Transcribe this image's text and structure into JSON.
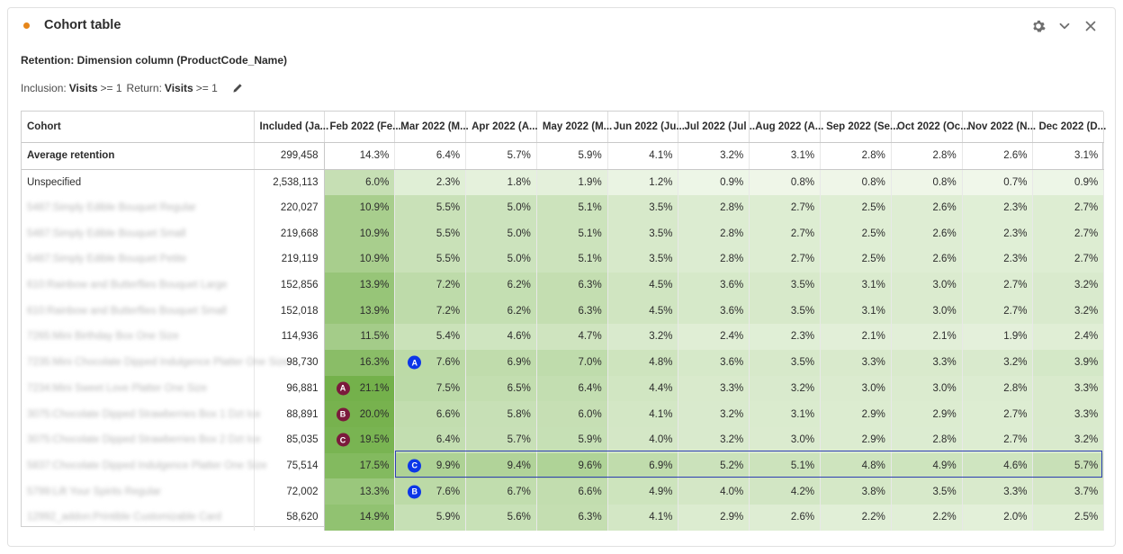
{
  "panel": {
    "title": "Cohort table",
    "status_color": "#e68619",
    "icons": [
      "gear-icon",
      "chevron-down-icon",
      "close-icon"
    ]
  },
  "subtitle": "Retention: Dimension column (ProductCode_Name)",
  "criteria": {
    "inclusion_label": "Inclusion:",
    "inclusion_metric": "Visits",
    "inclusion_op": ">= 1",
    "return_label": "Return:",
    "return_metric": "Visits",
    "return_op": ">= 1"
  },
  "table": {
    "columns": [
      "Cohort",
      "Included (Ja...",
      "Feb 2022 (Fe...",
      "Mar 2022 (M...",
      "Apr 2022 (A...",
      "May 2022 (M...",
      "Jun 2022 (Ju...",
      "Jul 2022 (Jul ...",
      "Aug 2022 (A...",
      "Sep 2022 (Se...",
      "Oct 2022 (Oc...",
      "Nov 2022 (N...",
      "Dec 2022 (D..."
    ],
    "average": {
      "label": "Average retention",
      "included": "299,458",
      "values": [
        "14.3%",
        "6.4%",
        "5.7%",
        "5.9%",
        "4.1%",
        "3.2%",
        "3.1%",
        "2.8%",
        "2.8%",
        "2.6%",
        "3.1%"
      ]
    },
    "rows": [
      {
        "cohort": "Unspecified",
        "blurred": false,
        "included": "2,538,113",
        "values": [
          "6.0%",
          "2.3%",
          "1.8%",
          "1.9%",
          "1.2%",
          "0.9%",
          "0.8%",
          "0.8%",
          "0.8%",
          "0.7%",
          "0.9%"
        ]
      },
      {
        "cohort": "5487:Simply Edible Bouquet Regular",
        "blurred": true,
        "included": "220,027",
        "values": [
          "10.9%",
          "5.5%",
          "5.0%",
          "5.1%",
          "3.5%",
          "2.8%",
          "2.7%",
          "2.5%",
          "2.6%",
          "2.3%",
          "2.7%"
        ]
      },
      {
        "cohort": "5487:Simply Edible Bouquet Small",
        "blurred": true,
        "included": "219,668",
        "values": [
          "10.9%",
          "5.5%",
          "5.0%",
          "5.1%",
          "3.5%",
          "2.8%",
          "2.7%",
          "2.5%",
          "2.6%",
          "2.3%",
          "2.7%"
        ]
      },
      {
        "cohort": "5487:Simply Edible Bouquet Petite",
        "blurred": true,
        "included": "219,119",
        "values": [
          "10.9%",
          "5.5%",
          "5.0%",
          "5.1%",
          "3.5%",
          "2.8%",
          "2.7%",
          "2.5%",
          "2.6%",
          "2.3%",
          "2.7%"
        ]
      },
      {
        "cohort": "610:Rainbow and Butterflies Bouquet Large",
        "blurred": true,
        "included": "152,856",
        "values": [
          "13.9%",
          "7.2%",
          "6.2%",
          "6.3%",
          "4.5%",
          "3.6%",
          "3.5%",
          "3.1%",
          "3.0%",
          "2.7%",
          "3.2%"
        ]
      },
      {
        "cohort": "610:Rainbow and Butterflies Bouquet Small",
        "blurred": true,
        "included": "152,018",
        "values": [
          "13.9%",
          "7.2%",
          "6.2%",
          "6.3%",
          "4.5%",
          "3.6%",
          "3.5%",
          "3.1%",
          "3.0%",
          "2.7%",
          "3.2%"
        ]
      },
      {
        "cohort": "7265:Mini Birthday Box One Size",
        "blurred": true,
        "included": "114,936",
        "values": [
          "11.5%",
          "5.4%",
          "4.6%",
          "4.7%",
          "3.2%",
          "2.4%",
          "2.3%",
          "2.1%",
          "2.1%",
          "1.9%",
          "2.4%"
        ]
      },
      {
        "cohort": "7235:Mini Chocolate Dipped Indulgence Platter One Size",
        "blurred": true,
        "included": "98,730",
        "values": [
          "16.3%",
          "7.6%",
          "6.9%",
          "7.0%",
          "4.8%",
          "3.6%",
          "3.5%",
          "3.3%",
          "3.3%",
          "3.2%",
          "3.9%"
        ]
      },
      {
        "cohort": "7234:Mini Sweet Love Platter One Size",
        "blurred": true,
        "included": "96,881",
        "values": [
          "21.1%",
          "7.5%",
          "6.5%",
          "6.4%",
          "4.4%",
          "3.3%",
          "3.2%",
          "3.0%",
          "3.0%",
          "2.8%",
          "3.3%"
        ]
      },
      {
        "cohort": "3075:Chocolate Dipped Strawberries Box 1 Dzt Ice",
        "blurred": true,
        "included": "88,891",
        "values": [
          "20.0%",
          "6.6%",
          "5.8%",
          "6.0%",
          "4.1%",
          "3.2%",
          "3.1%",
          "2.9%",
          "2.9%",
          "2.7%",
          "3.3%"
        ]
      },
      {
        "cohort": "3075:Chocolate Dipped Strawberries Box 2 Dzt Ice",
        "blurred": true,
        "included": "85,035",
        "values": [
          "19.5%",
          "6.4%",
          "5.7%",
          "5.9%",
          "4.0%",
          "3.2%",
          "3.0%",
          "2.9%",
          "2.8%",
          "2.7%",
          "3.2%"
        ]
      },
      {
        "cohort": "5837:Chocolate Dipped Indulgence Platter One Size",
        "blurred": true,
        "included": "75,514",
        "values": [
          "17.5%",
          "9.9%",
          "9.4%",
          "9.6%",
          "6.9%",
          "5.2%",
          "5.1%",
          "4.8%",
          "4.9%",
          "4.6%",
          "5.7%"
        ]
      },
      {
        "cohort": "5799:Lift Your Spirits Regular",
        "blurred": true,
        "included": "72,002",
        "values": [
          "13.3%",
          "7.6%",
          "6.7%",
          "6.6%",
          "4.9%",
          "4.0%",
          "4.2%",
          "3.8%",
          "3.5%",
          "3.3%",
          "3.7%"
        ]
      },
      {
        "cohort": "12992_addon:Printible Customizable Card",
        "blurred": true,
        "included": "58,620",
        "values": [
          "14.9%",
          "5.9%",
          "5.6%",
          "6.3%",
          "4.1%",
          "2.9%",
          "2.6%",
          "2.2%",
          "2.2%",
          "2.0%",
          "2.5%"
        ]
      }
    ],
    "annotations": [
      {
        "row": 7,
        "col": 1,
        "letter": "A",
        "color": "#0c36e8"
      },
      {
        "row": 8,
        "col": 0,
        "letter": "A",
        "color": "#7b1a3c"
      },
      {
        "row": 9,
        "col": 0,
        "letter": "B",
        "color": "#7b1a3c"
      },
      {
        "row": 10,
        "col": 0,
        "letter": "C",
        "color": "#7b1a3c"
      },
      {
        "row": 11,
        "col": 1,
        "letter": "C",
        "color": "#0c36e8"
      },
      {
        "row": 12,
        "col": 1,
        "letter": "B",
        "color": "#0c36e8"
      }
    ],
    "highlighted_row": 11,
    "highlight_color": "#2f3fb5",
    "heat_color_low": "#f3f9ee",
    "heat_color_high": "#74b14b"
  }
}
